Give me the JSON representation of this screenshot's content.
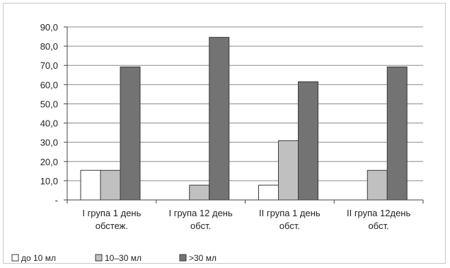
{
  "chart_data": {
    "type": "bar",
    "categories": [
      [
        "І група 1 день",
        "обстеж."
      ],
      [
        "І група 12 день",
        "обст."
      ],
      [
        "ІІ група 1 день",
        "обст."
      ],
      [
        "ІІ група 12день",
        "обст."
      ]
    ],
    "series": [
      {
        "name": "до 10 мл",
        "color": "#ffffff",
        "values": [
          15.4,
          0,
          7.7,
          0
        ]
      },
      {
        "name": "10–30 мл",
        "color": "#c0c0c0",
        "values": [
          15.4,
          7.7,
          30.8,
          15.4
        ]
      },
      {
        "name": ">30 мл",
        "color": "#737373",
        "values": [
          69.2,
          84.6,
          61.5,
          69.2
        ]
      }
    ],
    "y_ticks": [
      "-",
      "10,0",
      "20,0",
      "30,0",
      "40,0",
      "50,0",
      "60,0",
      "70,0",
      "80,0",
      "90,0"
    ],
    "ylim": [
      0,
      90
    ],
    "grid": true,
    "legend_position": "bottom-left"
  }
}
